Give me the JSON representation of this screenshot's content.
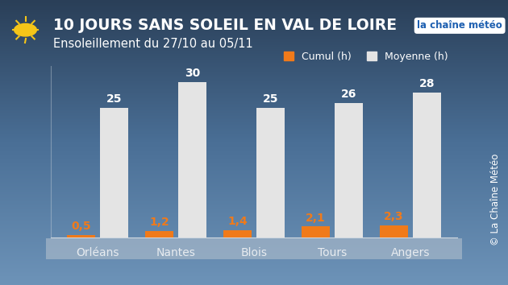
{
  "chart_data": {
    "type": "bar",
    "title": "10 JOURS SANS SOLEIL EN VAL DE LOIRE",
    "subtitle": "Ensoleillement du 27/10 au 05/11",
    "annotations": [
      "la chaîne météo",
      "© La Chaîne Météo"
    ],
    "categories": [
      "Orléans",
      "Nantes",
      "Blois",
      "Tours",
      "Angers"
    ],
    "series": [
      {
        "name": "Cumul (h)",
        "color": "#f07a1a",
        "values": [
          0.5,
          1.2,
          1.4,
          2.1,
          2.3
        ],
        "value_labels": [
          "0,5",
          "1,2",
          "1,4",
          "2,1",
          "2,3"
        ]
      },
      {
        "name": "Moyenne (h)",
        "color": "#e4e4e4",
        "values": [
          25,
          30,
          25,
          26,
          28
        ]
      }
    ],
    "ylim": [
      0,
      33
    ],
    "yticks": [],
    "grid": false,
    "legend": "upper right",
    "data_labels": true,
    "tick_labels": "x"
  }
}
